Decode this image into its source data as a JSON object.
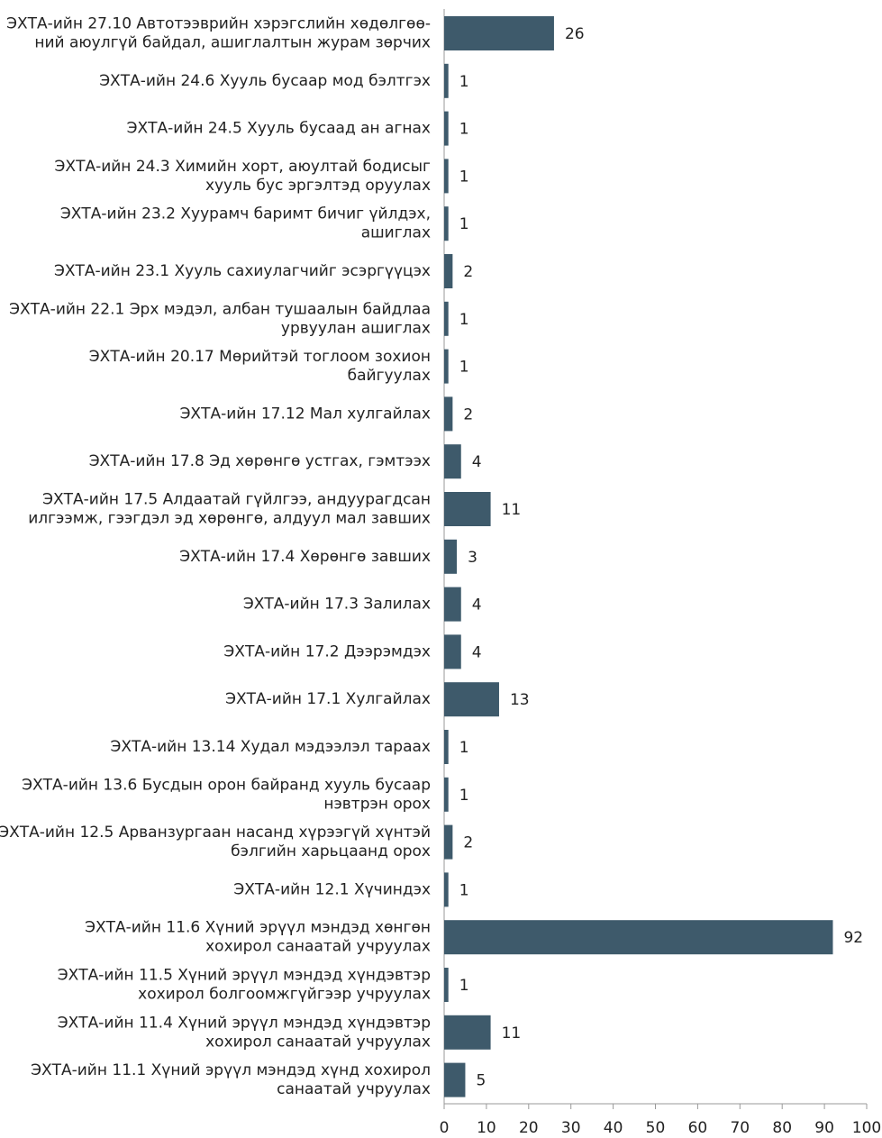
{
  "chart_data": {
    "type": "barh",
    "categories": [
      [
        "ЭХТА-ийн 27.10 Автотээврийн хэрэгслийн хөдөлгөө-",
        "ний аюулгүй байдал, ашиглалтын журам зөрчих"
      ],
      "ЭХТА-ийн 24.6 Хууль бусаар мод бэлтгэх",
      "ЭХТА-ийн 24.5 Хууль бусаад ан агнах",
      [
        "ЭХТА-ийн 24.3 Химийн хорт, аюултай бодисыг",
        "хууль бус эргэлтэд оруулах"
      ],
      [
        "ЭХТА-ийн 23.2 Хуурамч баримт бичиг үйлдэх,",
        "ашиглах"
      ],
      "ЭХТА-ийн 23.1 Хууль сахиулагчийг эсэргүүцэх",
      [
        "ЭХТА-ийн 22.1 Эрх мэдэл, албан тушаалын байдлаа",
        "урвуулан ашиглах"
      ],
      [
        "ЭХТА-ийн 20.17 Мөрийтэй тоглоом зохион",
        "байгуулах"
      ],
      "ЭХТА-ийн 17.12 Мал хулгайлах",
      "ЭХТА-ийн 17.8 Эд хөрөнгө устгах, гэмтээх",
      [
        "ЭХТА-ийн 17.5 Алдаатай гүйлгээ, андуурагдсан",
        "илгээмж, гээгдэл эд хөрөнгө, алдуул мал завших"
      ],
      "ЭХТА-ийн 17.4 Хөрөнгө завших",
      "ЭХТА-ийн 17.3 Залилах",
      "ЭХТА-ийн 17.2 Дээрэмдэх",
      "ЭХТА-ийн 17.1 Хулгайлах",
      "ЭХТА-ийн 13.14 Худал мэдээлэл тараах",
      [
        "ЭХТА-ийн 13.6 Бусдын орон байранд хууль бусаар",
        "нэвтрэн орох"
      ],
      [
        "ЭХТА-ийн 12.5 Арванзургаан насанд хүрээгүй хүнтэй",
        "бэлгийн харьцаанд орох"
      ],
      "ЭХТА-ийн 12.1 Хүчиндэх",
      [
        "ЭХТА-ийн 11.6 Хүний эрүүл мэндэд хөнгөн",
        "хохирол санаатай учруулах"
      ],
      [
        "ЭХТА-ийн 11.5 Хүний эрүүл мэндэд хүндэвтэр",
        "хохирол болгоомжгүйгээр учруулах"
      ],
      [
        "ЭХТА-ийн 11.4 Хүний эрүүл мэндэд хүндэвтэр",
        "хохирол санаатай учруулах"
      ],
      [
        "ЭХТА-ийн 11.1 Хүний эрүүл мэндэд хүнд хохирол",
        "санаатай учруулах"
      ]
    ],
    "values": [
      26,
      1,
      1,
      1,
      1,
      2,
      1,
      1,
      2,
      4,
      11,
      3,
      4,
      4,
      13,
      1,
      1,
      2,
      1,
      92,
      1,
      11,
      5
    ],
    "color": "#3e5a6b",
    "xlim": [
      0,
      100
    ],
    "xticks": [
      0,
      10,
      20,
      30,
      40,
      50,
      60,
      70,
      80,
      90,
      100
    ]
  }
}
